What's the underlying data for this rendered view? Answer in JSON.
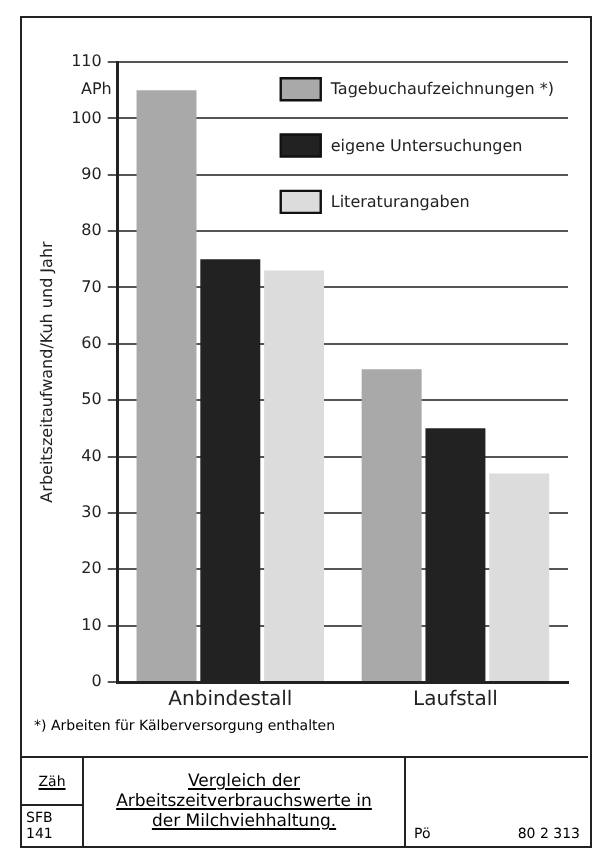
{
  "chart_data": {
    "type": "bar",
    "title": "Vergleich der Arbeitszeitverbrauchswerte in der Milchviehhaltung.",
    "ylabel": "Arbeitszeitaufwand/Kuh und Jahr",
    "categories": [
      "Anbindestall",
      "Laufstall"
    ],
    "series": [
      {
        "name": "Tagebuchaufzeichnungen *)",
        "color": "#a9a9a9",
        "values": [
          105,
          55.5
        ]
      },
      {
        "name": "eigene Untersuchungen",
        "color": "#222222",
        "values": [
          75,
          45
        ]
      },
      {
        "name": "Literaturangaben",
        "color": "#dcdcdc",
        "values": [
          73,
          37
        ]
      }
    ],
    "ylim": [
      0,
      110
    ],
    "yticks": [
      0,
      10,
      20,
      30,
      40,
      50,
      60,
      70,
      80,
      90,
      100,
      110
    ],
    "grid": "y",
    "legend": "top right",
    "annotations": [
      "APh",
      "*) Arbeiten für Kälberversorgung enthalten",
      "Zäh",
      "SFB 141",
      "Pö",
      "80 2 313"
    ]
  }
}
